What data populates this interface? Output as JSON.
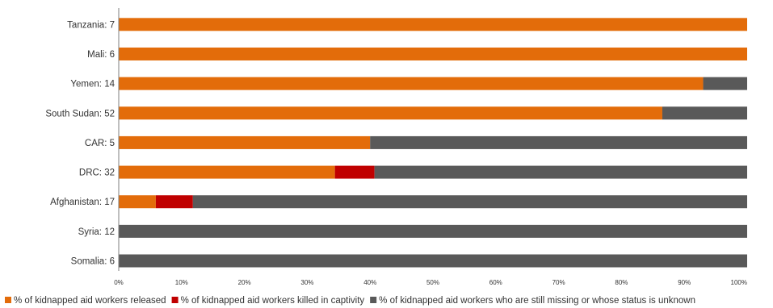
{
  "chart_data": {
    "type": "bar",
    "orientation": "horizontal",
    "stacked": true,
    "categories": [
      "Tanzania: 7",
      "Mali: 6",
      "Yemen: 14",
      "South Sudan: 52",
      "CAR: 5",
      "DRC: 32",
      "Afghanistan: 17",
      "Syria: 12",
      "Somalia: 6"
    ],
    "series": [
      {
        "name": "% of kidnapped aid workers released",
        "color": "#e36c0a",
        "values": [
          100,
          100,
          93,
          86.5,
          40,
          34.4,
          5.9,
          0,
          0
        ]
      },
      {
        "name": "% of kidnapped aid workers killed in captivity",
        "color": "#c00000",
        "values": [
          0,
          0,
          0,
          0,
          0,
          6.3,
          5.9,
          0,
          0
        ]
      },
      {
        "name": "% of kidnapped aid workers who are still missing or whose status is unknown",
        "color": "#595959",
        "values": [
          0,
          0,
          7,
          13.5,
          60,
          59.3,
          88.2,
          100,
          100
        ]
      }
    ],
    "xlim": [
      0,
      100
    ],
    "x_ticks": [
      "0%",
      "10%",
      "20%",
      "30%",
      "40%",
      "50%",
      "60%",
      "70%",
      "80%",
      "90%",
      "100%"
    ],
    "x_tick_values": [
      0,
      10,
      20,
      30,
      40,
      50,
      60,
      70,
      80,
      90,
      100
    ],
    "grid": false,
    "legend_position": "bottom"
  }
}
